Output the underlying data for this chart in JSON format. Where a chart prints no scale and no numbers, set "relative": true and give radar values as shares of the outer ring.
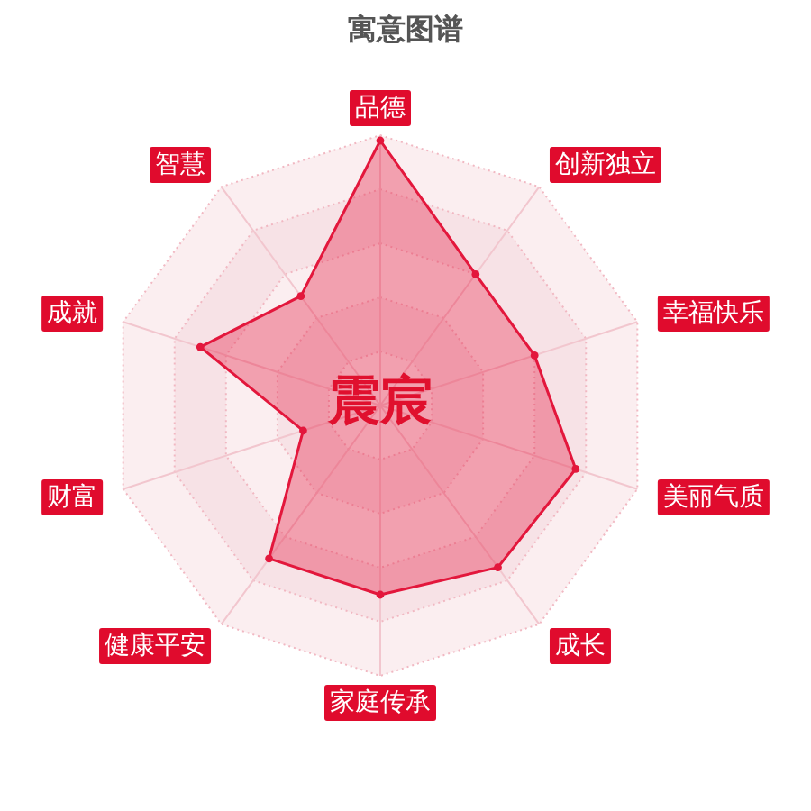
{
  "chart_data": {
    "type": "radar",
    "title": "寓意图谱",
    "categories": [
      "品德",
      "创新独立",
      "幸福快乐",
      "美丽气质",
      "成长",
      "家庭传承",
      "健康平安",
      "财富",
      "成就",
      "智慧"
    ],
    "relative": true,
    "series": [
      {
        "color": "#e3173c",
        "values": [
          0.98,
          0.6,
          0.6,
          0.76,
          0.74,
          0.7,
          0.7,
          0.3,
          0.7,
          0.5
        ]
      }
    ],
    "marker": "circle",
    "annotations": [
      "震宸"
    ]
  }
}
